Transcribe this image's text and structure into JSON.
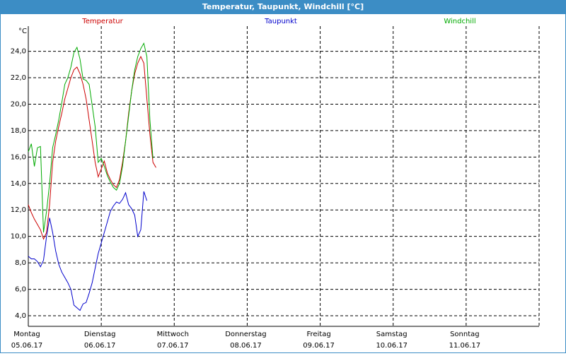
{
  "chart_data": {
    "type": "line",
    "title": "Temperatur, Taupunkt, Windchill [°C]",
    "y_unit": "°C",
    "x": [
      0,
      1,
      2,
      3,
      4,
      5,
      6,
      7,
      8,
      9,
      10,
      11,
      12,
      13,
      14,
      15,
      16,
      17,
      18,
      19,
      20,
      21,
      22,
      23,
      24,
      25,
      26,
      27,
      28,
      29,
      30,
      31,
      32,
      33,
      34,
      35,
      36,
      37,
      38,
      39,
      40,
      41,
      42
    ],
    "series": [
      {
        "name": "Temperatur",
        "color": "#cc0000",
        "values": [
          12.4,
          11.8,
          11.3,
          10.9,
          10.5,
          9.8,
          10.3,
          12.4,
          15.6,
          17.2,
          18.3,
          19.3,
          20.4,
          21.2,
          22.0,
          22.6,
          22.8,
          22.3,
          21.5,
          20.4,
          18.8,
          17.2,
          15.6,
          14.5,
          15.1,
          15.7,
          14.8,
          14.3,
          13.9,
          13.7,
          14.3,
          15.6,
          17.2,
          19.3,
          21.0,
          22.3,
          23.1,
          23.6,
          23.1,
          20.4,
          17.7,
          15.6,
          15.2
        ]
      },
      {
        "name": "Taupunkt",
        "color": "#0000cc",
        "values": [
          8.5,
          8.3,
          8.3,
          8.1,
          7.7,
          8.2,
          10.0,
          11.4,
          10.3,
          8.9,
          7.9,
          7.3,
          6.9,
          6.5,
          6.0,
          4.8,
          4.6,
          4.4,
          4.9,
          5.0,
          5.7,
          6.5,
          7.6,
          8.7,
          9.5,
          10.3,
          11.1,
          11.9,
          12.3,
          12.6,
          12.5,
          12.8,
          13.3,
          12.4,
          12.1,
          11.6,
          10.0,
          10.5,
          13.4,
          12.7,
          null,
          null,
          null
        ]
      },
      {
        "name": "Windchill",
        "color": "#00aa00",
        "values": [
          16.4,
          17.0,
          15.3,
          16.7,
          16.8,
          10.3,
          11.9,
          14.0,
          16.7,
          17.7,
          18.8,
          20.1,
          21.5,
          22.0,
          22.8,
          23.9,
          24.3,
          23.4,
          21.9,
          21.8,
          21.5,
          19.9,
          18.3,
          15.6,
          15.9,
          15.3,
          14.6,
          14.1,
          13.7,
          13.5,
          14.0,
          15.3,
          17.2,
          19.1,
          21.0,
          22.6,
          23.6,
          24.2,
          24.6,
          23.6,
          18.8,
          15.9,
          null
        ]
      }
    ],
    "xlim": [
      0,
      168
    ],
    "xticks": [
      {
        "value": 0,
        "label": "Montag"
      },
      {
        "value": 24,
        "label": "Dienstag"
      },
      {
        "value": 48,
        "label": "Mittwoch"
      },
      {
        "value": 72,
        "label": "Donnerstag"
      },
      {
        "value": 96,
        "label": "Freitag"
      },
      {
        "value": 120,
        "label": "Samstag"
      },
      {
        "value": 144,
        "label": "Sonntag"
      }
    ],
    "xtick_dates": [
      "05.06.17",
      "06.06.17",
      "07.06.17",
      "08.06.17",
      "09.06.17",
      "10.06.17",
      "11.06.17"
    ],
    "ylim": [
      3.2,
      25.9
    ],
    "yticks": [
      {
        "value": 4,
        "label": "4,0"
      },
      {
        "value": 6,
        "label": "6,0"
      },
      {
        "value": 8,
        "label": "8,0"
      },
      {
        "value": 10,
        "label": "10,0"
      },
      {
        "value": 12,
        "label": "12,0"
      },
      {
        "value": 14,
        "label": "14,0"
      },
      {
        "value": 16,
        "label": "16,0"
      },
      {
        "value": 18,
        "label": "18,0"
      },
      {
        "value": 20,
        "label": "20,0"
      },
      {
        "value": 22,
        "label": "22,0"
      },
      {
        "value": 24,
        "label": "24,0"
      }
    ],
    "grid": true
  }
}
